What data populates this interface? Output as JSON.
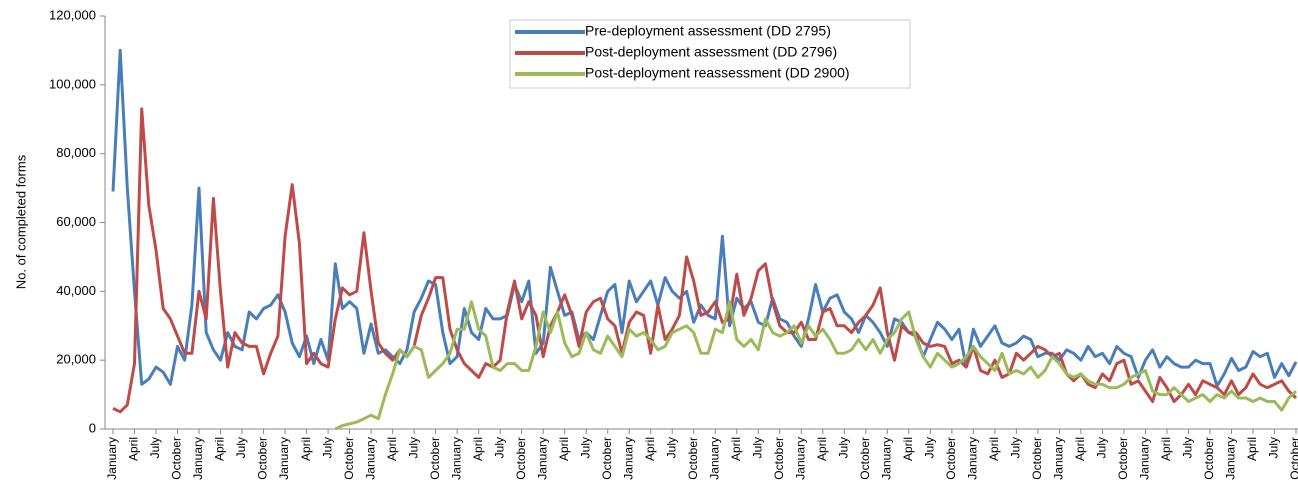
{
  "chart_data": {
    "type": "line",
    "y_label": "No. of completed forms",
    "legend": "upper center",
    "ylim": [
      0,
      120000
    ],
    "yticks": [
      0,
      {
        "value": 20000,
        "label": "20,000"
      },
      {
        "value": 40000,
        "label": "40,000"
      },
      {
        "value": 60000,
        "label": "60,000"
      },
      {
        "value": 80000,
        "label": "80,000"
      },
      {
        "value": 100000,
        "label": "100,000"
      },
      {
        "value": 120000,
        "label": "120,000"
      }
    ],
    "categories": [
      "January",
      null,
      null,
      "April",
      null,
      null,
      "July",
      null,
      null,
      "October",
      null,
      null,
      "January",
      null,
      null,
      "April",
      null,
      null,
      "July",
      null,
      null,
      "October",
      null,
      null,
      "January",
      null,
      null,
      "April",
      null,
      null,
      "July",
      null,
      null,
      "October",
      null,
      null,
      "January",
      null,
      null,
      "April",
      null,
      null,
      "July",
      null,
      null,
      "October",
      null,
      null,
      "January",
      null,
      null,
      "April",
      null,
      null,
      "July",
      null,
      null,
      "October",
      null,
      null,
      "January",
      null,
      null,
      "April",
      null,
      null,
      "July",
      null,
      null,
      "October",
      null,
      null,
      "January",
      null,
      null,
      "April",
      null,
      null,
      "July",
      null,
      null,
      "October",
      null,
      null,
      "January",
      null,
      null,
      "April",
      null,
      null,
      "July",
      null,
      null,
      "October",
      null,
      null,
      "January",
      null,
      null,
      "April",
      null,
      null,
      "July",
      null,
      null,
      "October",
      null,
      null,
      "January",
      null,
      null,
      "April",
      null,
      null,
      "July",
      null,
      null,
      "October",
      null,
      null,
      "January",
      null,
      null,
      "April",
      null,
      null,
      "July",
      null,
      null,
      "October",
      null,
      null,
      "January",
      null,
      null,
      "April",
      null,
      null,
      "July",
      null,
      null,
      "October",
      null,
      null,
      "January",
      null,
      null,
      "April",
      null,
      null,
      "July",
      null,
      null,
      "October",
      null,
      null,
      "January",
      null,
      null,
      "April",
      null,
      null,
      "July",
      null,
      null,
      "October"
    ],
    "series": [
      {
        "name": "Pre-deployment assessment (DD 2795)",
        "color": "#4a7ebb",
        "values": [
          69000,
          110000,
          70000,
          40000,
          13000,
          14500,
          18000,
          16500,
          13000,
          24000,
          20000,
          36000,
          70000,
          28000,
          23000,
          20000,
          28000,
          24000,
          23000,
          34000,
          32000,
          35000,
          36000,
          39000,
          34000,
          25000,
          21000,
          27000,
          19000,
          26000,
          20000,
          48000,
          35000,
          37000,
          35000,
          22000,
          30500,
          22000,
          23000,
          21000,
          19000,
          23000,
          34000,
          38000,
          43000,
          42000,
          28000,
          19000,
          21000,
          35000,
          28000,
          26000,
          35000,
          32000,
          32000,
          33000,
          42000,
          37000,
          43000,
          22000,
          25000,
          47000,
          40000,
          33000,
          34000,
          26000,
          28000,
          26000,
          33000,
          40000,
          42000,
          28000,
          43000,
          37000,
          40000,
          43000,
          36000,
          44000,
          40000,
          38000,
          40000,
          31000,
          36000,
          33000,
          32000,
          56000,
          30000,
          38000,
          35000,
          37000,
          31000,
          30000,
          38000,
          32000,
          31000,
          27000,
          24000,
          32000,
          42000,
          34000,
          38000,
          39000,
          34000,
          32000,
          28000,
          33000,
          31000,
          28000,
          24000,
          32000,
          31000,
          28000,
          27000,
          21000,
          26000,
          31000,
          29000,
          26000,
          29000,
          18000,
          29000,
          24000,
          27000,
          30000,
          25000,
          24000,
          25000,
          27000,
          26000,
          21000,
          22000,
          22000,
          20000,
          23000,
          22000,
          20000,
          24000,
          21000,
          22000,
          19000,
          24000,
          22000,
          21000,
          15000,
          20000,
          23000,
          18000,
          21000,
          19000,
          18000,
          18000,
          20000,
          19000,
          19000,
          12500,
          16000,
          20500,
          17000,
          18000,
          22500,
          21000,
          22000,
          15000,
          19000,
          15500,
          19500
        ]
      },
      {
        "name": "Post-deployment assessment (DD 2796)",
        "color": "#be4b48",
        "values": [
          6000,
          5000,
          7000,
          19000,
          93000,
          65000,
          52000,
          35000,
          32000,
          27000,
          22000,
          22000,
          40000,
          32000,
          67000,
          40000,
          18000,
          28000,
          25000,
          24000,
          24000,
          16000,
          22000,
          27000,
          56000,
          71000,
          54000,
          19000,
          22000,
          19000,
          18000,
          32000,
          41000,
          39000,
          40000,
          57000,
          40000,
          25000,
          22000,
          20000,
          23000,
          21000,
          24000,
          33000,
          38000,
          44000,
          44000,
          29000,
          23000,
          19000,
          17000,
          15000,
          19000,
          18000,
          20000,
          34000,
          43000,
          32000,
          37000,
          33000,
          21000,
          30000,
          34000,
          39000,
          33000,
          24000,
          34000,
          37000,
          38000,
          32000,
          30000,
          22000,
          31000,
          34000,
          33000,
          22000,
          36000,
          26000,
          29000,
          33000,
          50000,
          43000,
          33000,
          34000,
          37000,
          31000,
          32000,
          45000,
          33000,
          38000,
          46000,
          48000,
          37000,
          30000,
          28000,
          28000,
          31000,
          26000,
          26000,
          34000,
          35000,
          30000,
          30000,
          28000,
          31000,
          33000,
          36000,
          41000,
          28000,
          20000,
          30000,
          28000,
          28000,
          25000,
          24000,
          24500,
          24000,
          19000,
          20000,
          18000,
          24000,
          17000,
          16000,
          20000,
          15000,
          16000,
          22000,
          20000,
          22000,
          24000,
          23000,
          21000,
          22000,
          16000,
          14000,
          16000,
          13000,
          12000,
          16000,
          14000,
          19000,
          20000,
          13000,
          14000,
          11000,
          8000,
          15000,
          12000,
          8000,
          10000,
          13000,
          10000,
          14000,
          13000,
          12000,
          10000,
          14000,
          10000,
          12000,
          16000,
          13000,
          12000,
          13000,
          14000,
          11000,
          9000
        ]
      },
      {
        "name": "Post-deployment reassessment (DD 2900)",
        "color": "#9bbb59",
        "values": [
          null,
          null,
          null,
          null,
          null,
          null,
          null,
          null,
          null,
          null,
          null,
          null,
          null,
          null,
          null,
          null,
          null,
          null,
          null,
          null,
          null,
          null,
          null,
          null,
          null,
          null,
          null,
          null,
          null,
          null,
          null,
          0,
          1000,
          1500,
          2000,
          3000,
          4000,
          3000,
          10000,
          16000,
          23000,
          21000,
          24000,
          23000,
          15000,
          17000,
          19000,
          22000,
          29000,
          29000,
          37000,
          29000,
          27000,
          18000,
          17000,
          19000,
          19000,
          17000,
          17000,
          24000,
          34000,
          28000,
          34000,
          25000,
          21000,
          22000,
          28000,
          23000,
          22000,
          27000,
          24000,
          21000,
          29000,
          27000,
          28000,
          26000,
          23000,
          24000,
          28000,
          29000,
          30000,
          28000,
          22000,
          22000,
          29000,
          28000,
          37000,
          26000,
          24000,
          26000,
          23000,
          32000,
          28000,
          27000,
          28000,
          30000,
          25000,
          30000,
          27000,
          29000,
          26000,
          22000,
          22000,
          23000,
          26000,
          23000,
          26000,
          22000,
          26000,
          28000,
          32000,
          34000,
          26000,
          21000,
          18000,
          22000,
          20000,
          18000,
          19000,
          21000,
          24000,
          21000,
          19000,
          17000,
          22000,
          16000,
          17000,
          16000,
          18000,
          15000,
          17000,
          21000,
          19000,
          16000,
          15000,
          16000,
          14000,
          13000,
          13000,
          12000,
          12000,
          13000,
          15000,
          16000,
          17000,
          11000,
          10000,
          10000,
          12000,
          10000,
          8000,
          9000,
          10000,
          8000,
          10000,
          9000,
          11000,
          9000,
          9000,
          8000,
          9000,
          8000,
          8000,
          5500,
          9000,
          11000
        ]
      }
    ]
  }
}
